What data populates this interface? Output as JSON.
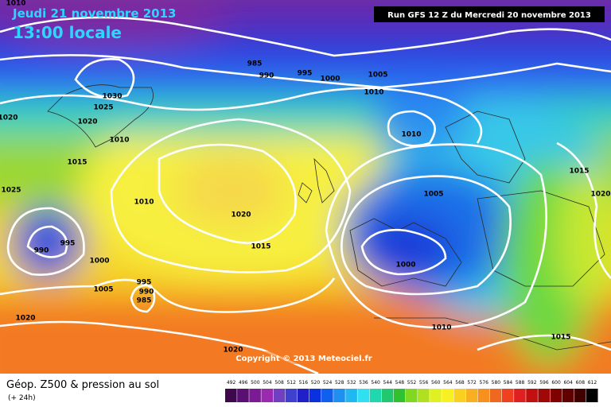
{
  "header": {
    "date": "Jeudi 21 novembre 2013",
    "time": "13:00 locale",
    "run": "Run GFS 12 Z du Mercredi 20 novembre 2013"
  },
  "isobar_labels": [
    "1010",
    "985",
    "990",
    "995",
    "1000",
    "1005",
    "1010",
    "1030",
    "1025",
    "1020",
    "1020",
    "1010",
    "1015",
    "1025",
    "1010",
    "1020",
    "1005",
    "1010",
    "1015",
    "1020",
    "995",
    "990",
    "1000",
    "1015",
    "1000",
    "1005",
    "995",
    "990",
    "985",
    "1020",
    "1010",
    "1015",
    "1020"
  ],
  "copyright": "Copyright © 2013 Meteociel.fr",
  "legend": {
    "title": "Géop. Z500 & pression au sol",
    "subtitle": "(+ 24h)",
    "scale": [
      {
        "label": "492",
        "color": "#3c0a4c"
      },
      {
        "label": "496",
        "color": "#5a1070"
      },
      {
        "label": "500",
        "color": "#7a1a94"
      },
      {
        "label": "504",
        "color": "#9a2ab0"
      },
      {
        "label": "508",
        "color": "#7040c0"
      },
      {
        "label": "512",
        "color": "#4040d0"
      },
      {
        "label": "516",
        "color": "#2020c8"
      },
      {
        "label": "520",
        "color": "#0a30e0"
      },
      {
        "label": "524",
        "color": "#1060f0"
      },
      {
        "label": "528",
        "color": "#2090f0"
      },
      {
        "label": "532",
        "color": "#20b8f0"
      },
      {
        "label": "536",
        "color": "#30e0f0"
      },
      {
        "label": "540",
        "color": "#20d8b0"
      },
      {
        "label": "544",
        "color": "#20c870"
      },
      {
        "label": "548",
        "color": "#30c030"
      },
      {
        "label": "552",
        "color": "#80d820"
      },
      {
        "label": "556",
        "color": "#b0e020"
      },
      {
        "label": "560",
        "color": "#e0f020"
      },
      {
        "label": "564",
        "color": "#f8f020"
      },
      {
        "label": "568",
        "color": "#f8d020"
      },
      {
        "label": "572",
        "color": "#f8b020"
      },
      {
        "label": "576",
        "color": "#f89020"
      },
      {
        "label": "580",
        "color": "#f06820"
      },
      {
        "label": "584",
        "color": "#f04020"
      },
      {
        "label": "588",
        "color": "#e02020"
      },
      {
        "label": "592",
        "color": "#c01010"
      },
      {
        "label": "596",
        "color": "#a00808"
      },
      {
        "label": "600",
        "color": "#800000"
      },
      {
        "label": "604",
        "color": "#600000"
      },
      {
        "label": "608",
        "color": "#400000"
      },
      {
        "label": "612",
        "color": "#000000"
      }
    ]
  }
}
